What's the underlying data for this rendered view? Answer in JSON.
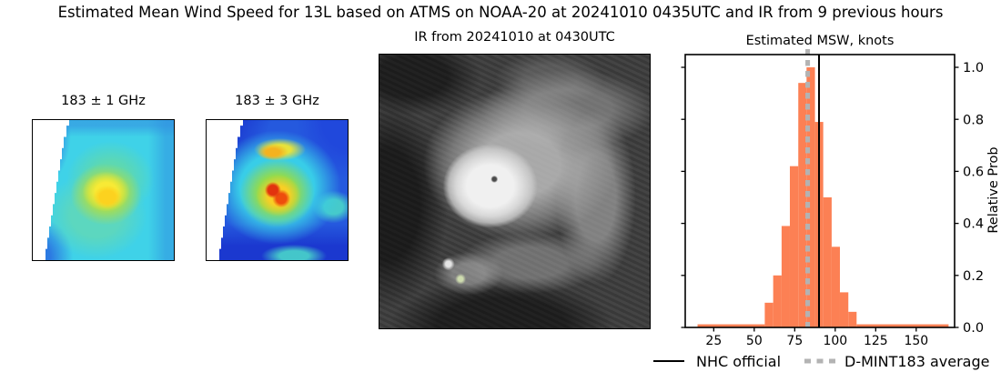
{
  "figure": {
    "suptitle": "Estimated Mean Wind Speed for 13L based on ATMS on NOAA-20 at 20241010 0435UTC and IR from 9 previous hours",
    "background": "#ffffff"
  },
  "panels": {
    "mw1": {
      "title": "183 ± 1 GHz",
      "palette": [
        "#2c5ce2",
        "#3fd2e8",
        "#93db4d",
        "#f8ea35",
        "#fcd21f"
      ]
    },
    "mw2": {
      "title": "183 ± 3 GHz",
      "palette": [
        "#1b38cf",
        "#38cde8",
        "#93db4d",
        "#f8cf25",
        "#ee4d0d",
        "#e2330e"
      ]
    },
    "ir": {
      "title": "IR from 20241010 at 0430UTC"
    },
    "hist": {
      "title": "Estimated MSW, knots",
      "ylabel": "Relative Prob"
    }
  },
  "legend": {
    "items": [
      {
        "label": "NHC official",
        "style": "solid",
        "color": "#000000"
      },
      {
        "label": "D-MINT183 average",
        "style": "dotted",
        "color": "#b3b3b3"
      }
    ]
  },
  "chart_data": {
    "type": "bar",
    "title": "Estimated MSW, knots",
    "ylabel": "Relative Prob",
    "x_units": "knots",
    "xlim": [
      7.4,
      173.7
    ],
    "ylim": [
      0,
      1.049
    ],
    "xticks": [
      25,
      50,
      75,
      100,
      125,
      150
    ],
    "yticks": [
      0.0,
      0.2,
      0.4,
      0.6,
      0.8,
      1.0
    ],
    "bar_color": "#fc8054",
    "frame_color": "#000000",
    "bins": [
      {
        "x0": 15.0,
        "x1": 56.5,
        "h": 0.012
      },
      {
        "x0": 56.5,
        "x1": 61.7,
        "h": 0.095
      },
      {
        "x0": 61.7,
        "x1": 66.9,
        "h": 0.2
      },
      {
        "x0": 66.9,
        "x1": 72.0,
        "h": 0.39
      },
      {
        "x0": 72.0,
        "x1": 77.2,
        "h": 0.62
      },
      {
        "x0": 77.2,
        "x1": 82.3,
        "h": 0.94
      },
      {
        "x0": 82.3,
        "x1": 87.5,
        "h": 1.0
      },
      {
        "x0": 87.5,
        "x1": 92.6,
        "h": 0.79
      },
      {
        "x0": 92.6,
        "x1": 97.8,
        "h": 0.5
      },
      {
        "x0": 97.8,
        "x1": 102.9,
        "h": 0.31
      },
      {
        "x0": 102.9,
        "x1": 108.1,
        "h": 0.135
      },
      {
        "x0": 108.1,
        "x1": 113.2,
        "h": 0.06
      },
      {
        "x0": 113.2,
        "x1": 170.0,
        "h": 0.012
      }
    ],
    "vlines": [
      {
        "x": 90,
        "label": "NHC official",
        "color": "#000000",
        "style": "solid",
        "width": 2
      },
      {
        "x": 83,
        "label": "D-MINT183 average",
        "color": "#b3b3b3",
        "style": "dotted",
        "width": 5
      }
    ]
  }
}
